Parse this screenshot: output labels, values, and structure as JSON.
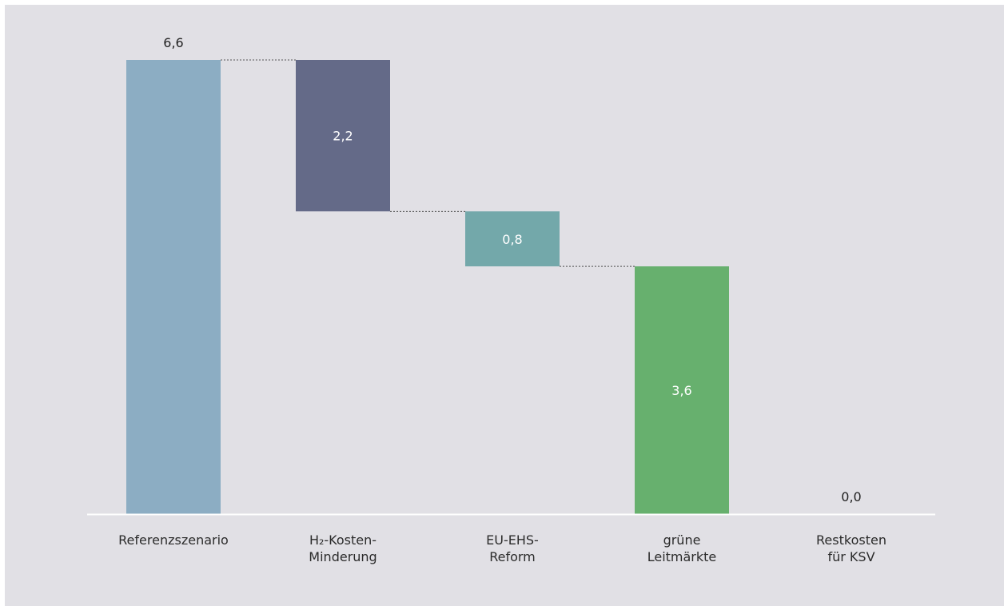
{
  "chart_data": {
    "type": "bar",
    "subtype": "waterfall",
    "categories": [
      "Referenzszenario",
      "H₂-Kosten-Minderung",
      "EU-EHS-Reform",
      "grüne Leitmärkte",
      "Restkosten für KSV"
    ],
    "category_label_lines": [
      [
        "Referenzszenario"
      ],
      [
        "H₂-Kosten-",
        "Minderung"
      ],
      [
        "EU-EHS-",
        "Reform"
      ],
      [
        "grüne",
        "Leitmärkte"
      ],
      [
        "Restkosten",
        "für KSV"
      ]
    ],
    "values": [
      6.6,
      -2.2,
      -0.8,
      -3.6,
      0.0
    ],
    "value_labels": [
      "6,6",
      "2,2",
      "0,8",
      "3,6",
      "0,0"
    ],
    "bar_kinds": [
      "total",
      "decrease",
      "decrease",
      "decrease",
      "total"
    ],
    "colors": [
      "#8cadc3",
      "#646a88",
      "#73a8aa",
      "#67b06e",
      "#8cadc3"
    ],
    "label_colors": [
      "#222222",
      "#ffffff",
      "#ffffff",
      "#ffffff",
      "#222222"
    ],
    "connector_color": "#555555",
    "axis_line_color": "#ffffff",
    "ylim": [
      0,
      6.6
    ],
    "grid": false,
    "legend": "none",
    "title": "",
    "xlabel": "",
    "ylabel": ""
  }
}
